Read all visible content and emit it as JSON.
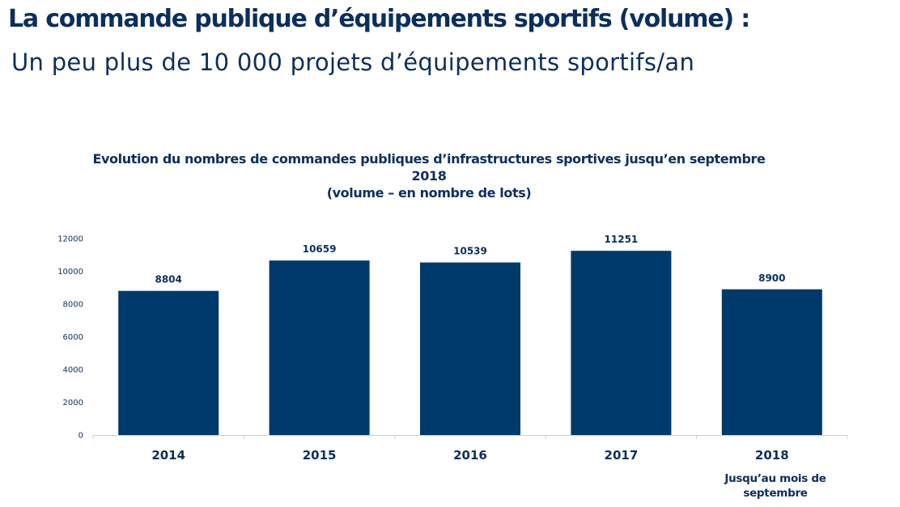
{
  "slide": {
    "title": "La commande publique d’équipements sportifs (volume) :",
    "subtitle": "Un peu plus de 10 000 projets d’équipements sportifs/an"
  },
  "chart_data": {
    "type": "bar",
    "title_line1": "Evolution du nombres de commandes publiques d’infrastructures sportives jusqu’en septembre",
    "title_line2": "2018",
    "title_line3": "(volume – en nombre de lots)",
    "categories": [
      "2014",
      "2015",
      "2016",
      "2017",
      "2018"
    ],
    "values": [
      8804,
      10659,
      10539,
      11251,
      8900
    ],
    "data_labels": [
      "8804",
      "10659",
      "10539",
      "11251",
      "8900"
    ],
    "y_ticks": [
      "0",
      "2000",
      "4000",
      "6000",
      "8000",
      "10000",
      "12000"
    ],
    "ylim": [
      0,
      12000
    ],
    "category_note": "Jusqu’au mois de septembre",
    "grid": false,
    "legend": "none",
    "bar_color": "#003a6b"
  }
}
